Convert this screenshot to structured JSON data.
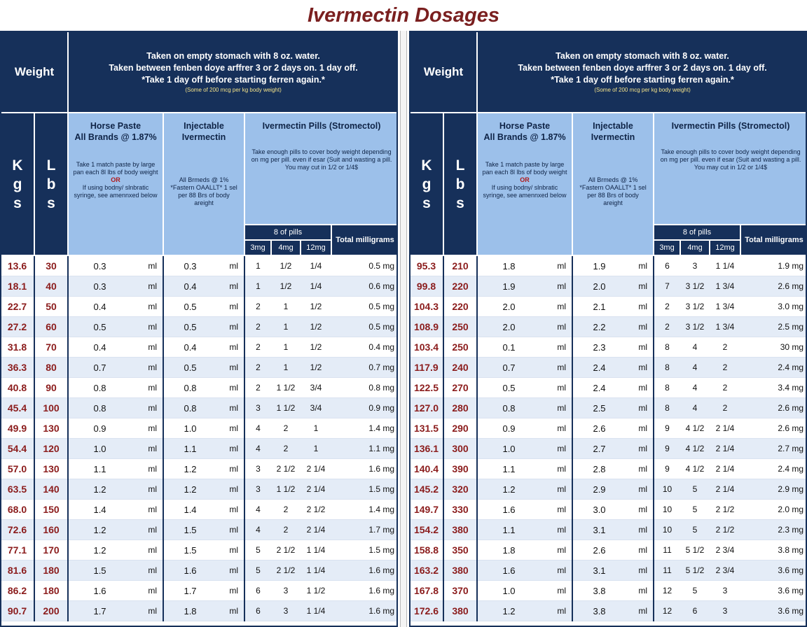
{
  "title": "Ivermectin Dosages",
  "header": {
    "weight_label": "Weight",
    "instructions": [
      "Taken on empty stomach with 8 oz. water.",
      "Taken between fenben doye arffrer 3 or 2 days on. 1 day off.",
      "*Take 1 day off before starting ferren again.*"
    ],
    "small_note": "(Some of 200 mcg per kg body weight)",
    "kg_letters": [
      "K",
      "g",
      "s"
    ],
    "lb_letters": [
      "L",
      "b",
      "s"
    ],
    "horse_paste": {
      "title_lines": [
        "Horse Paste",
        "All Brands @ 1.87%"
      ],
      "desc_top": "Take 1 match paste by large pan each 8l lbs of body weight",
      "or": "OR",
      "desc_bottom": "If using bodny/ slnbratic syringe, see amennxed below"
    },
    "injectable": {
      "title_lines": [
        "Injectable",
        "Ivermectin"
      ],
      "desc": "All Brmeds @ 1% *Fastern OAALLT* 1 sel per 88 Brs of body areight"
    },
    "pills": {
      "title_lines": [
        "Ivermectin Pills",
        "(Stromectol)"
      ],
      "desc": "Take enough pills to cover body weight depending on mg per pill. even if esar (Suit and wasting a pill. You may cut in 1/2 or 1/4$",
      "count_label": "8 of pills",
      "sizes": [
        "3mg",
        "4mg",
        "12mg"
      ],
      "total_label": "Total milligrams"
    }
  },
  "left_rows": [
    {
      "kg": "13.6",
      "lb": "30",
      "paste": "0.3",
      "paste_unit": "ml",
      "inj": "0.3",
      "inj_unit": "ml",
      "p3": "1",
      "p4": "1/2",
      "p12": "1/4",
      "total": "0.5 mg"
    },
    {
      "kg": "18.1",
      "lb": "40",
      "paste": "0.3",
      "paste_unit": "ml",
      "inj": "0.4",
      "inj_unit": "ml",
      "p3": "1",
      "p4": "1/2",
      "p12": "1/4",
      "total": "0.6 mg"
    },
    {
      "kg": "22.7",
      "lb": "50",
      "paste": "0.4",
      "paste_unit": "ml",
      "inj": "0.5",
      "inj_unit": "ml",
      "p3": "2",
      "p4": "1",
      "p12": "1/2",
      "total": "0.5 mg"
    },
    {
      "kg": "27.2",
      "lb": "60",
      "paste": "0.5",
      "paste_unit": "ml",
      "inj": "0.5",
      "inj_unit": "ml",
      "p3": "2",
      "p4": "1",
      "p12": "1/2",
      "total": "0.5 mg"
    },
    {
      "kg": "31.8",
      "lb": "70",
      "paste": "0.4",
      "paste_unit": "ml",
      "inj": "0.4",
      "inj_unit": "ml",
      "p3": "2",
      "p4": "1",
      "p12": "1/2",
      "total": "0.4 mg"
    },
    {
      "kg": "36.3",
      "lb": "80",
      "paste": "0.7",
      "paste_unit": "ml",
      "inj": "0.5",
      "inj_unit": "ml",
      "p3": "2",
      "p4": "1",
      "p12": "1/2",
      "total": "0.7 mg"
    },
    {
      "kg": "40.8",
      "lb": "90",
      "paste": "0.8",
      "paste_unit": "ml",
      "inj": "0.8",
      "inj_unit": "ml",
      "p3": "2",
      "p4": "1 1/2",
      "p12": "3/4",
      "total": "0.8 mg"
    },
    {
      "kg": "45.4",
      "lb": "100",
      "paste": "0.8",
      "paste_unit": "ml",
      "inj": "0.8",
      "inj_unit": "ml",
      "p3": "3",
      "p4": "1 1/2",
      "p12": "3/4",
      "total": "0.9 mg"
    },
    {
      "kg": "49.9",
      "lb": "130",
      "paste": "0.9",
      "paste_unit": "ml",
      "inj": "1.0",
      "inj_unit": "ml",
      "p3": "4",
      "p4": "2",
      "p12": "1",
      "total": "1.4 mg"
    },
    {
      "kg": "54.4",
      "lb": "120",
      "paste": "1.0",
      "paste_unit": "ml",
      "inj": "1.1",
      "inj_unit": "ml",
      "p3": "4",
      "p4": "2",
      "p12": "1",
      "total": "1.1 mg"
    },
    {
      "kg": "57.0",
      "lb": "130",
      "paste": "1.1",
      "paste_unit": "ml",
      "inj": "1.2",
      "inj_unit": "ml",
      "p3": "3",
      "p4": "2 1/2",
      "p12": "2 1/4",
      "total": "1.6 mg"
    },
    {
      "kg": "63.5",
      "lb": "140",
      "paste": "1.2",
      "paste_unit": "ml",
      "inj": "1.2",
      "inj_unit": "ml",
      "p3": "3",
      "p4": "1 1/2",
      "p12": "2 1/4",
      "total": "1.5 mg"
    },
    {
      "kg": "68.0",
      "lb": "150",
      "paste": "1.4",
      "paste_unit": "ml",
      "inj": "1.4",
      "inj_unit": "ml",
      "p3": "4",
      "p4": "2",
      "p12": "2 1/2",
      "total": "1.4 mg"
    },
    {
      "kg": "72.6",
      "lb": "160",
      "paste": "1.2",
      "paste_unit": "ml",
      "inj": "1.5",
      "inj_unit": "ml",
      "p3": "4",
      "p4": "2",
      "p12": "2 1/4",
      "total": "1.7 mg"
    },
    {
      "kg": "77.1",
      "lb": "170",
      "paste": "1.2",
      "paste_unit": "ml",
      "inj": "1.5",
      "inj_unit": "ml",
      "p3": "5",
      "p4": "2 1/2",
      "p12": "1 1/4",
      "total": "1.5 mg"
    },
    {
      "kg": "81.6",
      "lb": "180",
      "paste": "1.5",
      "paste_unit": "ml",
      "inj": "1.6",
      "inj_unit": "ml",
      "p3": "5",
      "p4": "2 1/2",
      "p12": "1 1/4",
      "total": "1.6 mg"
    },
    {
      "kg": "86.2",
      "lb": "180",
      "paste": "1.6",
      "paste_unit": "ml",
      "inj": "1.7",
      "inj_unit": "ml",
      "p3": "6",
      "p4": "3",
      "p12": "1 1/2",
      "total": "1.6 mg"
    },
    {
      "kg": "90.7",
      "lb": "200",
      "paste": "1.7",
      "paste_unit": "ml",
      "inj": "1.8",
      "inj_unit": "ml",
      "p3": "6",
      "p4": "3",
      "p12": "1 1/4",
      "total": "1.6 mg"
    }
  ],
  "right_rows": [
    {
      "kg": "95.3",
      "lb": "210",
      "paste": "1.8",
      "paste_unit": "ml",
      "inj": "1.9",
      "inj_unit": "ml",
      "p3": "6",
      "p4": "3",
      "p12": "1 1/4",
      "total": "1.9 mg"
    },
    {
      "kg": "99.8",
      "lb": "220",
      "paste": "1.9",
      "paste_unit": "ml",
      "inj": "2.0",
      "inj_unit": "ml",
      "p3": "7",
      "p4": "3 1/2",
      "p12": "1 3/4",
      "total": "2.6 mg"
    },
    {
      "kg": "104.3",
      "lb": "220",
      "paste": "2.0",
      "paste_unit": "ml",
      "inj": "2.1",
      "inj_unit": "ml",
      "p3": "2",
      "p4": "3 1/2",
      "p12": "1 3/4",
      "total": "3.0 mg"
    },
    {
      "kg": "108.9",
      "lb": "250",
      "paste": "2.0",
      "paste_unit": "ml",
      "inj": "2.2",
      "inj_unit": "ml",
      "p3": "2",
      "p4": "3 1/2",
      "p12": "1 3/4",
      "total": "2.5 mg"
    },
    {
      "kg": "103.4",
      "lb": "250",
      "paste": "0.1",
      "paste_unit": "ml",
      "inj": "2.3",
      "inj_unit": "ml",
      "p3": "8",
      "p4": "4",
      "p12": "2",
      "total": "30 mg"
    },
    {
      "kg": "117.9",
      "lb": "240",
      "paste": "0.7",
      "paste_unit": "ml",
      "inj": "2.4",
      "inj_unit": "ml",
      "p3": "8",
      "p4": "4",
      "p12": "2",
      "total": "2.4 mg"
    },
    {
      "kg": "122.5",
      "lb": "270",
      "paste": "0.5",
      "paste_unit": "ml",
      "inj": "2.4",
      "inj_unit": "ml",
      "p3": "8",
      "p4": "4",
      "p12": "2",
      "total": "3.4 mg"
    },
    {
      "kg": "127.0",
      "lb": "280",
      "paste": "0.8",
      "paste_unit": "ml",
      "inj": "2.5",
      "inj_unit": "ml",
      "p3": "8",
      "p4": "4",
      "p12": "2",
      "total": "2.6 mg"
    },
    {
      "kg": "131.5",
      "lb": "290",
      "paste": "0.9",
      "paste_unit": "ml",
      "inj": "2.6",
      "inj_unit": "ml",
      "p3": "9",
      "p4": "4 1/2",
      "p12": "2 1/4",
      "total": "2.6 mg"
    },
    {
      "kg": "136.1",
      "lb": "300",
      "paste": "1.0",
      "paste_unit": "ml",
      "inj": "2.7",
      "inj_unit": "ml",
      "p3": "9",
      "p4": "4 1/2",
      "p12": "2 1/4",
      "total": "2.7 mg"
    },
    {
      "kg": "140.4",
      "lb": "390",
      "paste": "1.1",
      "paste_unit": "ml",
      "inj": "2.8",
      "inj_unit": "ml",
      "p3": "9",
      "p4": "4 1/2",
      "p12": "2 1/4",
      "total": "2.4 mg"
    },
    {
      "kg": "145.2",
      "lb": "320",
      "paste": "1.2",
      "paste_unit": "ml",
      "inj": "2.9",
      "inj_unit": "ml",
      "p3": "10",
      "p4": "5",
      "p12": "2 1/4",
      "total": "2.9 mg"
    },
    {
      "kg": "149.7",
      "lb": "330",
      "paste": "1.6",
      "paste_unit": "ml",
      "inj": "3.0",
      "inj_unit": "ml",
      "p3": "10",
      "p4": "5",
      "p12": "2 1/2",
      "total": "2.0 mg"
    },
    {
      "kg": "154.2",
      "lb": "380",
      "paste": "1.1",
      "paste_unit": "ml",
      "inj": "3.1",
      "inj_unit": "ml",
      "p3": "10",
      "p4": "5",
      "p12": "2 1/2",
      "total": "2.3 mg"
    },
    {
      "kg": "158.8",
      "lb": "350",
      "paste": "1.8",
      "paste_unit": "ml",
      "inj": "2.6",
      "inj_unit": "ml",
      "p3": "11",
      "p4": "5 1/2",
      "p12": "2 3/4",
      "total": "3.8 mg"
    },
    {
      "kg": "163.2",
      "lb": "380",
      "paste": "1.6",
      "paste_unit": "ml",
      "inj": "3.1",
      "inj_unit": "ml",
      "p3": "11",
      "p4": "5 1/2",
      "p12": "2 3/4",
      "total": "3.6 mg"
    },
    {
      "kg": "167.8",
      "lb": "370",
      "paste": "1.0",
      "paste_unit": "ml",
      "inj": "3.8",
      "inj_unit": "ml",
      "p3": "12",
      "p4": "5",
      "p12": "3",
      "total": "3.6 mg"
    },
    {
      "kg": "172.6",
      "lb": "380",
      "paste": "1.2",
      "paste_unit": "ml",
      "inj": "3.8",
      "inj_unit": "ml",
      "p3": "12",
      "p4": "6",
      "p12": "3",
      "total": "3.6 mg"
    }
  ]
}
